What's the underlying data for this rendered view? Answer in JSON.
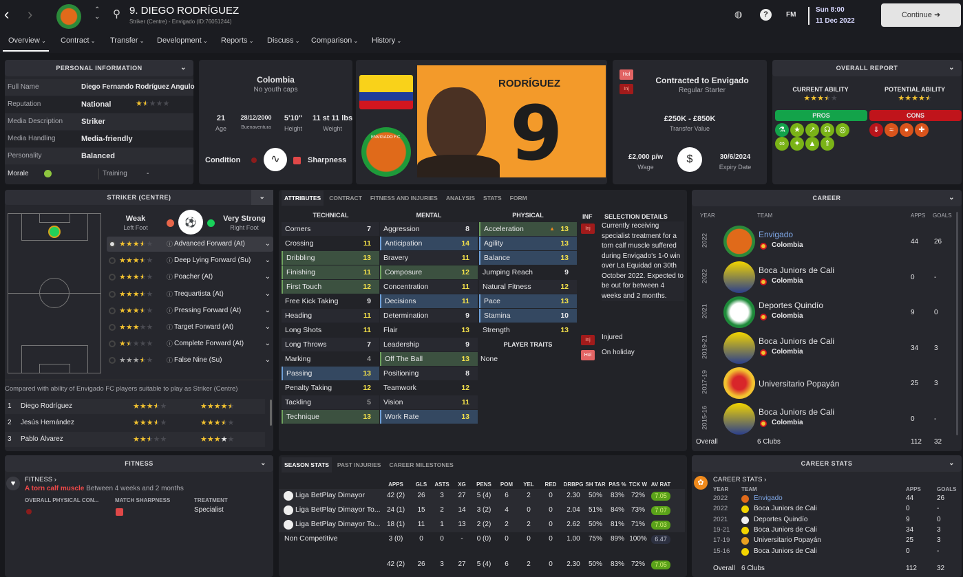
{
  "header": {
    "title": "9. DIEGO RODRÍGUEZ",
    "subtitle": "Striker (Centre) - Envigado (ID:76051244)",
    "fm_label": "FM",
    "day_time": "Sun 8:00",
    "date": "11 Dec 2022",
    "continue_label": "Continue",
    "icons": [
      "back-icon",
      "forward-icon",
      "club-badge-icon",
      "up-down-icon",
      "search-icon",
      "globe-icon",
      "help-icon"
    ]
  },
  "nav": {
    "items": [
      {
        "label": "Overview",
        "active": true
      },
      {
        "label": "Contract"
      },
      {
        "label": "Transfer"
      },
      {
        "label": "Development"
      },
      {
        "label": "Reports"
      },
      {
        "label": "Discuss"
      },
      {
        "label": "Comparison"
      },
      {
        "label": "History"
      }
    ]
  },
  "personal": {
    "title": "PERSONAL INFORMATION",
    "rows": [
      {
        "label": "Full Name",
        "value": "Diego Fernando Rodríguez Angulo"
      },
      {
        "label": "Reputation",
        "value": "National",
        "stars": 1.5
      },
      {
        "label": "Media Description",
        "value": "Striker"
      },
      {
        "label": "Media Handling",
        "value": "Media-friendly"
      },
      {
        "label": "Personality",
        "value": "Balanced"
      }
    ],
    "morale_label": "Morale",
    "training_label": "Training",
    "training_value": "-"
  },
  "nation": {
    "country": "Colombia",
    "caps": "No youth caps",
    "stats": [
      {
        "value": "21",
        "label": "Age"
      },
      {
        "value": "28/12/2000",
        "label": "Buenaventura"
      },
      {
        "value": "5'10\"",
        "label": "Height"
      },
      {
        "value": "11 st 11 lbs",
        "label": "Weight"
      }
    ],
    "condition_label": "Condition",
    "sharpness_label": "Sharpness"
  },
  "photo": {
    "shirt_name": "RODRÍGUEZ",
    "shirt_number": "9",
    "club_badge_text": "ENVIGADO F.C."
  },
  "contract": {
    "badges": [
      "Hol",
      "Inj"
    ],
    "title": "Contracted to Envigado",
    "status": "Regular Starter",
    "value": "£250K - £850K",
    "value_label": "Transfer Value",
    "wage": "£2,000 p/w",
    "wage_label": "Wage",
    "expiry": "30/6/2024",
    "expiry_label": "Expiry Date"
  },
  "report": {
    "title": "OVERALL REPORT",
    "ca_label": "CURRENT ABILITY",
    "ca_stars": 3.5,
    "pa_label": "POTENTIAL ABILITY",
    "pa_stars": 4.5,
    "pros_label": "PROS",
    "cons_label": "CONS",
    "pros_color": "#13a34a",
    "cons_color": "#c0141b",
    "pros": [
      "flask-icon",
      "star-icon",
      "trend-up-icon",
      "brain-icon",
      "target-icon",
      "chain-icon",
      "lightbulb-icon",
      "cone-trend-icon",
      "cone-up-icon"
    ],
    "cons": [
      "cone-down-icon",
      "feet-icon",
      "header-ball-icon",
      "medical-cross-icon"
    ]
  },
  "position": {
    "title": "STRIKER (CENTRE)",
    "weak_foot": "Weak",
    "weak_foot_label": "Left Foot",
    "strong_foot": "Very Strong",
    "strong_foot_label": "Right Foot",
    "roles": [
      {
        "stars": 3.5,
        "name": "Advanced Forward (At)",
        "selected": true
      },
      {
        "stars": 3.5,
        "name": "Deep Lying Forward (Su)"
      },
      {
        "stars": 3.5,
        "name": "Poacher (At)"
      },
      {
        "stars": 3.5,
        "name": "Trequartista (At)"
      },
      {
        "stars": 3.5,
        "name": "Pressing Forward (At)"
      },
      {
        "stars": 3,
        "name": "Target Forward (At)"
      },
      {
        "stars": 1.5,
        "name": "Complete Forward (At)"
      },
      {
        "stars": 3.5,
        "name": "False Nine (Su)",
        "grey": true
      }
    ],
    "compare_text": "Compared with ability of Envigado FC players suitable to play as Striker (Centre)",
    "compare": [
      {
        "rank": "1",
        "name": "Diego Rodríguez",
        "ca": 3.5,
        "pa": 4.5
      },
      {
        "rank": "2",
        "name": "Jesús Hernández",
        "ca": 3.5,
        "pa": 3.5
      },
      {
        "rank": "3",
        "name": "Pablo Álvarez",
        "ca": 2.5,
        "pa": 4
      }
    ]
  },
  "attributes": {
    "tabs": [
      "ATTRIBUTES",
      "CONTRACT",
      "FITNESS AND INJURIES",
      "ANALYSIS",
      "STATS",
      "FORM"
    ],
    "technical_label": "TECHNICAL",
    "mental_label": "MENTAL",
    "physical_label": "PHYSICAL",
    "inf_label": "INF",
    "selection_label": "SELECTION DETAILS",
    "traits_label": "PLAYER TRAITS",
    "traits": "None",
    "technical": [
      [
        "Corners",
        7,
        ""
      ],
      [
        "Crossing",
        11,
        ""
      ],
      [
        "Dribbling",
        13,
        "g"
      ],
      [
        "Finishing",
        11,
        "g"
      ],
      [
        "First Touch",
        12,
        "g"
      ],
      [
        "Free Kick Taking",
        9,
        ""
      ],
      [
        "Heading",
        11,
        ""
      ],
      [
        "Long Shots",
        11,
        ""
      ],
      [
        "Long Throws",
        7,
        ""
      ],
      [
        "Marking",
        4,
        ""
      ],
      [
        "Passing",
        13,
        "b"
      ],
      [
        "Penalty Taking",
        12,
        ""
      ],
      [
        "Tackling",
        5,
        ""
      ],
      [
        "Technique",
        13,
        "g"
      ]
    ],
    "mental": [
      [
        "Aggression",
        8,
        ""
      ],
      [
        "Anticipation",
        14,
        "b"
      ],
      [
        "Bravery",
        11,
        ""
      ],
      [
        "Composure",
        12,
        "g"
      ],
      [
        "Concentration",
        11,
        ""
      ],
      [
        "Decisions",
        11,
        "b"
      ],
      [
        "Determination",
        9,
        ""
      ],
      [
        "Flair",
        13,
        ""
      ],
      [
        "Leadership",
        9,
        ""
      ],
      [
        "Off The Ball",
        13,
        "g"
      ],
      [
        "Positioning",
        8,
        ""
      ],
      [
        "Teamwork",
        12,
        ""
      ],
      [
        "Vision",
        11,
        ""
      ],
      [
        "Work Rate",
        13,
        "b"
      ]
    ],
    "physical": [
      [
        "Acceleration",
        13,
        "g"
      ],
      [
        "Agility",
        13,
        "b"
      ],
      [
        "Balance",
        13,
        "b"
      ],
      [
        "Jumping Reach",
        9,
        ""
      ],
      [
        "Natural Fitness",
        12,
        ""
      ],
      [
        "Pace",
        13,
        "b"
      ],
      [
        "Stamina",
        10,
        "b"
      ],
      [
        "Strength",
        13,
        ""
      ]
    ],
    "selection": [
      {
        "badge": "Inj",
        "text": "Currently receiving specialist treatment for a torn calf muscle suffered during Envigado's 1-0 win over La Equidad on 30th October 2022. Expected to be out for between 4 weeks and 2 months."
      },
      {
        "badge": "Inj",
        "text": "Injured"
      },
      {
        "badge": "Hol",
        "text": "On holiday"
      }
    ]
  },
  "career": {
    "title": "CAREER",
    "headers": [
      "YEAR",
      "TEAM",
      "APPS",
      "GOALS"
    ],
    "rows": [
      {
        "year": "2022",
        "team": "Envigado",
        "nation": "Colombia",
        "apps": "44",
        "goals": "26",
        "link": true
      },
      {
        "year": "2022",
        "team": "Boca Juniors de Cali",
        "nation": "Colombia",
        "apps": "0",
        "goals": "-"
      },
      {
        "year": "2021",
        "team": "Deportes Quindío",
        "nation": "Colombia",
        "apps": "9",
        "goals": "0"
      },
      {
        "year": "2019-21",
        "team": "Boca Juniors de Cali",
        "nation": "Colombia",
        "apps": "34",
        "goals": "3"
      },
      {
        "year": "2017-19",
        "team": "Universitario Popayán",
        "nation": "",
        "apps": "25",
        "goals": "3"
      },
      {
        "year": "2015-16",
        "team": "Boca Juniors de Cali",
        "nation": "Colombia",
        "apps": "0",
        "goals": "-"
      }
    ],
    "overall_label": "Overall",
    "overall_clubs": "6 Clubs",
    "overall_apps": "112",
    "overall_goals": "32"
  },
  "fitness": {
    "title": "FITNESS",
    "link": "FITNESS",
    "injury": "A torn calf muscle",
    "duration": "Between 4 weeks and 2 months",
    "col1": "OVERALL PHYSICAL CON...",
    "col2": "MATCH SHARPNESS",
    "col3": "TREATMENT",
    "treatment": "Specialist"
  },
  "season": {
    "tabs": [
      "SEASON STATS",
      "PAST INJURIES",
      "CAREER MILESTONES"
    ],
    "headers": [
      "APPS",
      "GLS",
      "ASTS",
      "XG",
      "PENS",
      "POM",
      "YEL",
      "RED",
      "DRBPG",
      "SH TAR",
      "PAS %",
      "TCK W",
      "AV RAT"
    ],
    "rows": [
      {
        "comp": "Liga BetPlay Dimayor",
        "vals": [
          "42 (2)",
          "26",
          "3",
          "27",
          "5 (4)",
          "6",
          "2",
          "0",
          "2.30",
          "50%",
          "83%",
          "72%",
          "7.05"
        ]
      },
      {
        "comp": "Liga BetPlay Dimayor To...",
        "vals": [
          "24 (1)",
          "15",
          "2",
          "14",
          "3 (2)",
          "4",
          "0",
          "0",
          "2.04",
          "51%",
          "84%",
          "73%",
          "7.07"
        ]
      },
      {
        "comp": "Liga BetPlay Dimayor To...",
        "vals": [
          "18 (1)",
          "11",
          "1",
          "13",
          "2 (2)",
          "2",
          "2",
          "0",
          "2.62",
          "50%",
          "81%",
          "71%",
          "7.03"
        ]
      },
      {
        "comp": "Non Competitive",
        "vals": [
          "3 (0)",
          "0",
          "0",
          "-",
          "0 (0)",
          "0",
          "0",
          "0",
          "1.00",
          "75%",
          "89%",
          "100%",
          "6.47"
        ]
      }
    ],
    "total": [
      "42 (2)",
      "26",
      "3",
      "27",
      "5 (4)",
      "6",
      "2",
      "0",
      "2.30",
      "50%",
      "83%",
      "72%",
      "7.05"
    ]
  },
  "career_stats": {
    "title": "CAREER STATS",
    "link": "CAREER STATS",
    "headers": [
      "YEAR",
      "TEAM",
      "APPS",
      "GOALS"
    ],
    "rows": [
      [
        "2022",
        "Envigado",
        "44",
        "26"
      ],
      [
        "2022",
        "Boca Juniors de Cali",
        "0",
        "-"
      ],
      [
        "2021",
        "Deportes Quindío",
        "9",
        "0"
      ],
      [
        "19-21",
        "Boca Juniors de Cali",
        "34",
        "3"
      ],
      [
        "17-19",
        "Universitario Popayán",
        "25",
        "3"
      ],
      [
        "15-16",
        "Boca Juniors de Cali",
        "0",
        "-"
      ]
    ],
    "overall_label": "Overall",
    "overall_clubs": "6 Clubs",
    "overall_apps": "112",
    "overall_goals": "32"
  }
}
